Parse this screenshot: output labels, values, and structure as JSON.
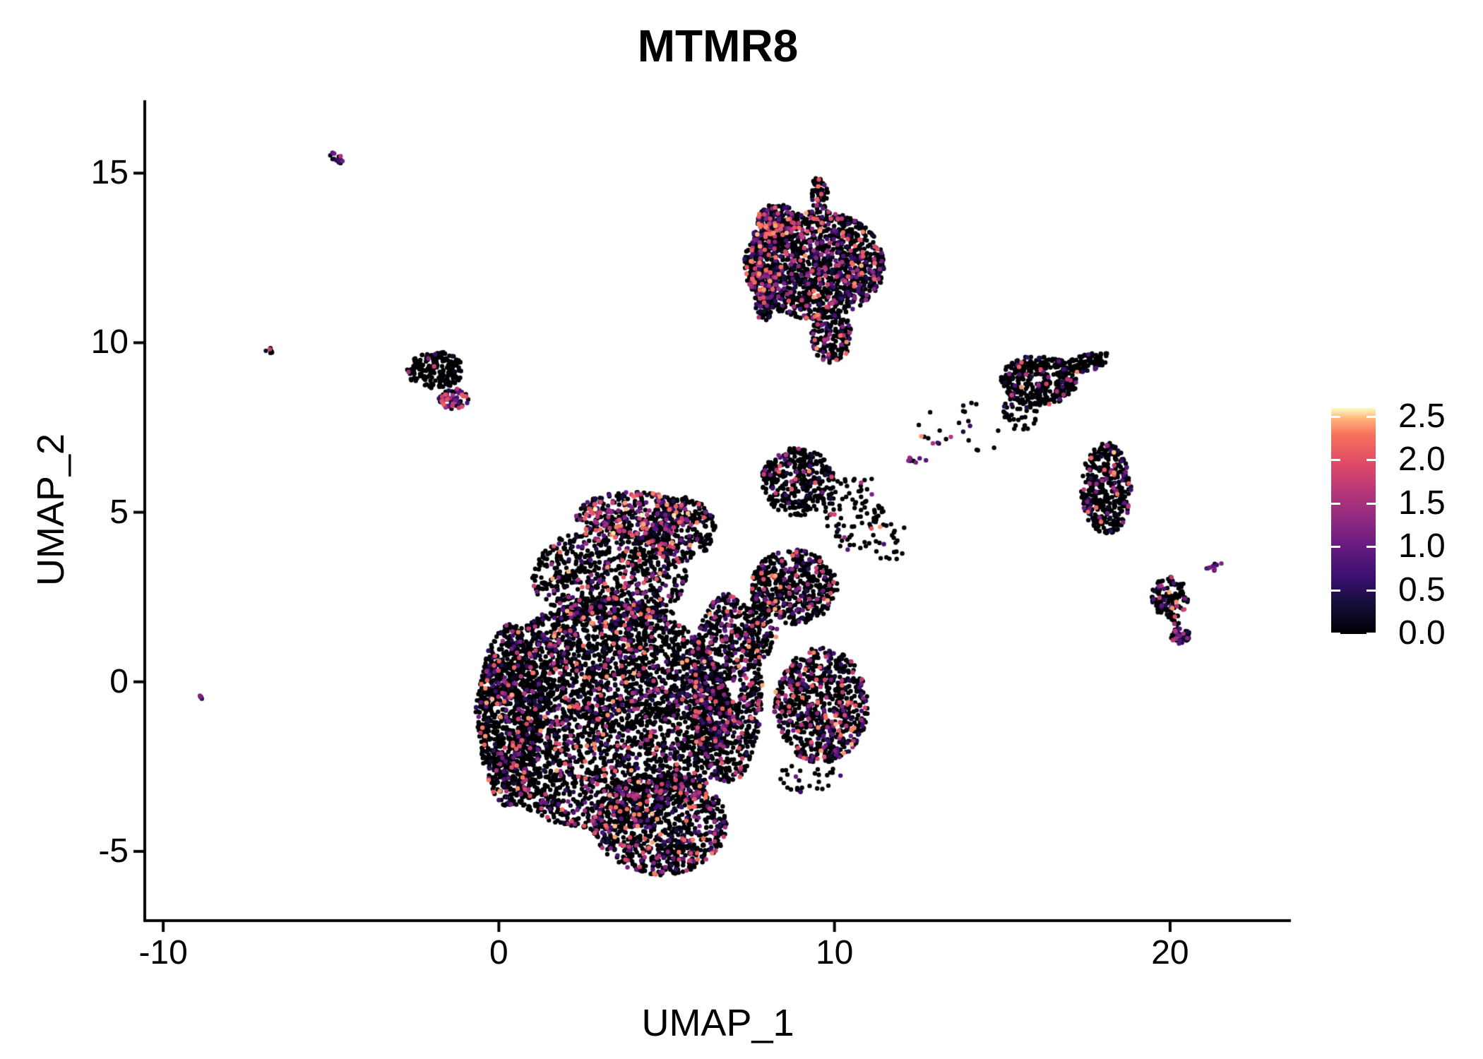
{
  "title": "MTMR8",
  "axes": {
    "x": {
      "label": "UMAP_1",
      "ticks": [
        -10,
        0,
        10,
        20
      ],
      "tick_labels": [
        "-10",
        "0",
        "10",
        "20"
      ]
    },
    "y": {
      "label": "UMAP_2",
      "ticks": [
        15,
        10,
        5,
        0,
        -5
      ],
      "tick_labels": [
        "15",
        "10",
        "5",
        "0",
        "-5"
      ]
    }
  },
  "legend": {
    "tick_labels": [
      "2.5",
      "2.0",
      "1.5",
      "1.0",
      "0.5",
      "0.0"
    ],
    "tick_values": [
      2.5,
      2.0,
      1.5,
      1.0,
      0.5,
      0.0
    ],
    "max_value": 2.5
  },
  "chart_data": {
    "type": "scatter",
    "title": "MTMR8",
    "xlabel": "UMAP_1",
    "ylabel": "UMAP_2",
    "xlim": [
      -10.55,
      23.6
    ],
    "ylim": [
      -7.0,
      17.15
    ],
    "grid": false,
    "legend_position": "right",
    "point_radius_px": 3.2,
    "colormap": {
      "name": "magma",
      "zero_color": "#000004",
      "value_max": 2.6,
      "stops": [
        [
          0.0,
          "#000004"
        ],
        [
          0.13,
          "#140E36"
        ],
        [
          0.25,
          "#3B0F70"
        ],
        [
          0.38,
          "#641A80"
        ],
        [
          0.5,
          "#8C2981"
        ],
        [
          0.63,
          "#B73779"
        ],
        [
          0.75,
          "#DE4968"
        ],
        [
          0.88,
          "#F7705C"
        ],
        [
          0.95,
          "#FEB078"
        ],
        [
          1.0,
          "#FCFDBF"
        ]
      ]
    },
    "clusters": [
      {
        "name": "central-main",
        "cx": 3.1,
        "cy": -1.0,
        "rx": 3.8,
        "ry": 3.4,
        "n": 3200,
        "frac": 0.22
      },
      {
        "name": "central-left-edge",
        "cx": 0.35,
        "cy": -1.0,
        "rx": 0.95,
        "ry": 2.7,
        "n": 700,
        "frac": 0.16
      },
      {
        "name": "central-bottom-lobe",
        "cx": 4.8,
        "cy": -4.2,
        "rx": 2.0,
        "ry": 1.5,
        "n": 900,
        "frac": 0.3
      },
      {
        "name": "central-upper-lobe",
        "cx": 3.3,
        "cy": 3.1,
        "rx": 2.3,
        "ry": 1.5,
        "n": 800,
        "frac": 0.25
      },
      {
        "name": "central-top-arc",
        "cx": 4.0,
        "cy": 4.9,
        "rx": 1.7,
        "ry": 0.7,
        "n": 350,
        "frac": 0.48,
        "vmin": 0.2,
        "vmax": 2.6,
        "p": 1.4
      },
      {
        "name": "central-top-right-bump",
        "cx": 5.4,
        "cy": 4.5,
        "rx": 1.05,
        "ry": 0.95,
        "n": 260,
        "frac": 0.3
      },
      {
        "name": "central-right-column",
        "cx": 6.8,
        "cy": -0.2,
        "rx": 1.05,
        "ry": 2.8,
        "n": 900,
        "frac": 0.28
      },
      {
        "name": "central-interior",
        "cx": 3.5,
        "cy": 0.6,
        "rx": 2.5,
        "ry": 2.0,
        "n": 420,
        "frac": 0.2
      },
      {
        "name": "right-lower-blob",
        "cx": 9.6,
        "cy": -0.7,
        "rx": 1.4,
        "ry": 1.7,
        "n": 800,
        "frac": 0.25
      },
      {
        "name": "right-lower-sparse",
        "cx": 9.3,
        "cy": -2.8,
        "rx": 1.0,
        "ry": 0.5,
        "n": 30,
        "frac": 0.15
      },
      {
        "name": "mid-right-cluster",
        "cx": 8.8,
        "cy": 2.8,
        "rx": 1.3,
        "ry": 1.1,
        "n": 500,
        "frac": 0.22
      },
      {
        "name": "mid-upper-blob",
        "cx": 8.9,
        "cy": 5.9,
        "rx": 1.1,
        "ry": 1.0,
        "n": 350,
        "frac": 0.15
      },
      {
        "name": "mid-upper-sparse",
        "cx": 10.6,
        "cy": 5.0,
        "rx": 0.95,
        "ry": 1.2,
        "n": 90,
        "frac": 0.1
      },
      {
        "name": "mid-bridge",
        "cx": 7.8,
        "cy": 1.7,
        "rx": 0.5,
        "ry": 1.0,
        "n": 120,
        "frac": 0.2
      },
      {
        "name": "top-main",
        "cx": 9.4,
        "cy": 12.3,
        "rx": 2.1,
        "ry": 1.6,
        "n": 1400,
        "frac": 0.32
      },
      {
        "name": "top-left-edge",
        "cx": 7.9,
        "cy": 12.2,
        "rx": 0.4,
        "ry": 1.6,
        "n": 220,
        "frac": 0.45
      },
      {
        "name": "top-bottom-tail",
        "cx": 9.9,
        "cy": 10.2,
        "rx": 0.6,
        "ry": 0.8,
        "n": 180,
        "frac": 0.25
      },
      {
        "name": "top-top-tail",
        "cx": 9.55,
        "cy": 14.4,
        "rx": 0.25,
        "ry": 0.55,
        "n": 60,
        "frac": 0.2
      },
      {
        "name": "top-left-clump",
        "cx": 8.3,
        "cy": 13.6,
        "rx": 0.6,
        "ry": 0.5,
        "n": 150,
        "frac": 0.4
      },
      {
        "name": "left-small-black",
        "cx": -1.9,
        "cy": 9.2,
        "rx": 0.85,
        "ry": 0.55,
        "n": 200,
        "frac": 0.05
      },
      {
        "name": "left-small-colored",
        "cx": -1.35,
        "cy": 8.35,
        "rx": 0.45,
        "ry": 0.3,
        "n": 70,
        "frac": 0.6,
        "vmin": 0.4,
        "vmax": 2.2,
        "p": 1.2
      },
      {
        "name": "tiny-topleft",
        "cx": -4.85,
        "cy": 15.45,
        "rx": 0.24,
        "ry": 0.13,
        "n": 18,
        "frac": 0.5,
        "rot": -35,
        "vmin": 0.3,
        "vmax": 1.6
      },
      {
        "name": "tiny-left-dot",
        "cx": -6.85,
        "cy": 9.75,
        "rx": 0.12,
        "ry": 0.1,
        "n": 6,
        "frac": 0.3
      },
      {
        "name": "tiny-far-left-dot",
        "cx": -8.85,
        "cy": -0.45,
        "rx": 0.1,
        "ry": 0.08,
        "n": 4,
        "frac": 0.5,
        "vmin": 0.5,
        "vmax": 1.2
      },
      {
        "name": "far-right-upper",
        "cx": 16.1,
        "cy": 8.9,
        "rx": 1.15,
        "ry": 0.75,
        "n": 380,
        "frac": 0.12
      },
      {
        "name": "far-right-upper-arm",
        "cx": 17.5,
        "cy": 9.4,
        "rx": 0.75,
        "ry": 0.25,
        "n": 90,
        "frac": 0.15,
        "rot": 15
      },
      {
        "name": "far-right-upper-sparse",
        "cx": 15.5,
        "cy": 7.9,
        "rx": 0.55,
        "ry": 0.5,
        "n": 40,
        "frac": 0.1
      },
      {
        "name": "far-right-elongated",
        "cx": 18.1,
        "cy": 5.7,
        "rx": 0.75,
        "ry": 1.35,
        "n": 380,
        "frac": 0.18
      },
      {
        "name": "far-right-small",
        "cx": 20.0,
        "cy": 2.5,
        "rx": 0.55,
        "ry": 0.6,
        "n": 120,
        "frac": 0.25
      },
      {
        "name": "far-right-pink-pair",
        "cx": 21.35,
        "cy": 3.4,
        "rx": 0.3,
        "ry": 0.13,
        "n": 10,
        "frac": 0.85,
        "rot": 25,
        "vmin": 0.7,
        "vmax": 1.8
      },
      {
        "name": "far-right-bottom-clump",
        "cx": 20.3,
        "cy": 1.35,
        "rx": 0.3,
        "ry": 0.25,
        "n": 40,
        "frac": 0.5,
        "vmin": 0.3,
        "vmax": 1.8
      },
      {
        "name": "far-right-trail",
        "cx": 20.15,
        "cy": 1.95,
        "rx": 0.15,
        "ry": 0.35,
        "n": 12,
        "frac": 0.2
      },
      {
        "name": "bridge-sparse",
        "cx": 13.7,
        "cy": 7.4,
        "rx": 1.3,
        "ry": 0.9,
        "n": 25,
        "frac": 0.2
      },
      {
        "name": "bridge-orange",
        "cx": 12.45,
        "cy": 6.55,
        "rx": 0.32,
        "ry": 0.12,
        "n": 10,
        "frac": 0.6,
        "vmin": 0.8,
        "vmax": 2.0
      },
      {
        "name": "mid-right-below-sparse",
        "cx": 11.6,
        "cy": 4.3,
        "rx": 0.6,
        "ry": 0.8,
        "n": 25,
        "frac": 0.1
      }
    ]
  }
}
